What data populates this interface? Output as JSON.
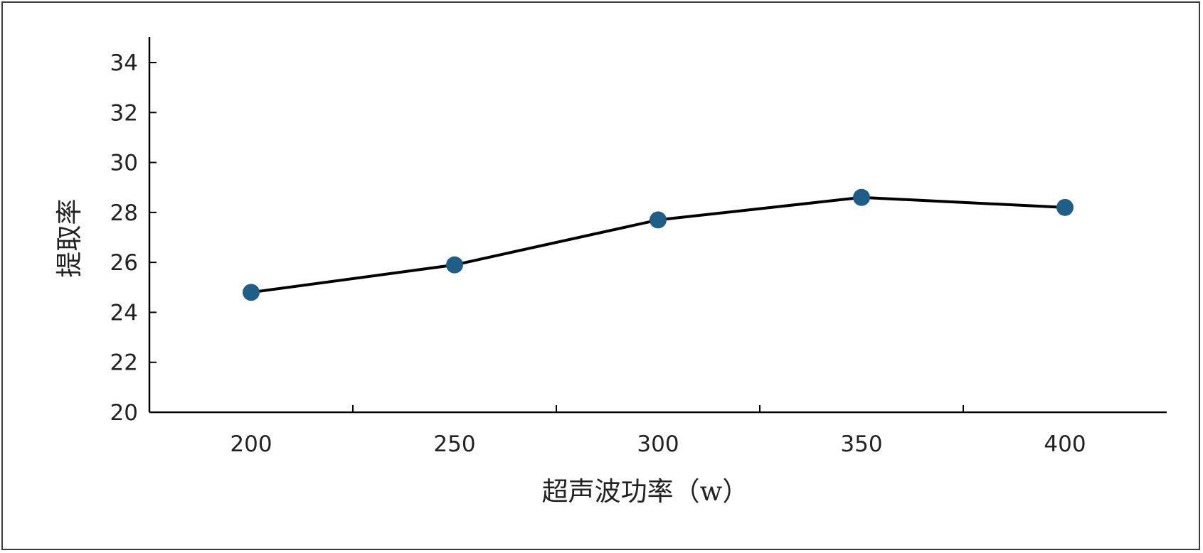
{
  "chart_data": {
    "type": "line",
    "title": "",
    "xlabel": "超声波功率（w）",
    "ylabel": "提取率",
    "categories": [
      "200",
      "250",
      "300",
      "350",
      "400"
    ],
    "series": [
      {
        "values": [
          24.8,
          25.9,
          27.7,
          28.6,
          28.2
        ]
      }
    ],
    "ylim": [
      20,
      34
    ],
    "yticks": [
      "20",
      "22",
      "24",
      "26",
      "28",
      "30",
      "32",
      "34"
    ],
    "grid": false,
    "legend": "none",
    "colors": {
      "line": "#000000",
      "marker": "#1f5f87",
      "axis": "#000000"
    }
  }
}
